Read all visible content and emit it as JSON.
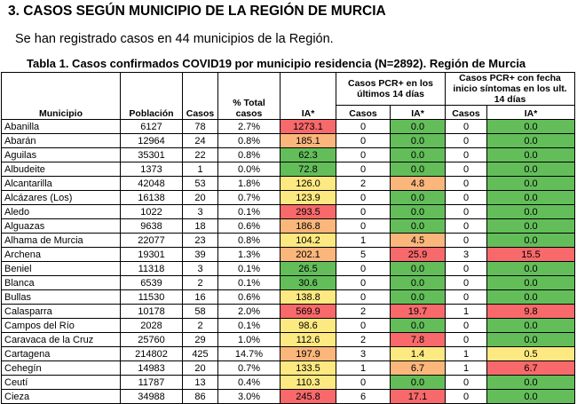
{
  "heading": "3. CASOS SEGÚN MUNICIPIO DE LA REGIÓN DE MURCIA",
  "intro": "Se han registrado casos en 44 municipios de la Región.",
  "caption": "Tabla 1. Casos confirmados COVID19 por municipio residencia (N=2892). Región de Murcia",
  "headers": {
    "municipio": "Municipio",
    "poblacion": "Población",
    "casos": "Casos",
    "pct": "% Total casos",
    "ia": "IA*",
    "grp1": "Casos PCR+ en los últimos 14 días",
    "grp2": "Casos PCR+ con fecha inicio síntomas en los ult. 14 días",
    "sub_casos": "Casos",
    "sub_ia": "IA*"
  },
  "colors": {
    "green": "#63be5a",
    "yellow": "#fde981",
    "orange": "#fbb67b",
    "red": "#f8696b"
  },
  "rows": [
    {
      "municipio": "Abanilla",
      "poblacion": "6127",
      "casos": "78",
      "pct": "2.7%",
      "ia": "1273.1",
      "c14": "0",
      "ia14": "0.0",
      "cs14": "0",
      "ias14": "0.0",
      "col": [
        "red",
        "green",
        "green"
      ]
    },
    {
      "municipio": "Abarán",
      "poblacion": "12964",
      "casos": "24",
      "pct": "0.8%",
      "ia": "185.1",
      "c14": "0",
      "ia14": "0.0",
      "cs14": "0",
      "ias14": "0.0",
      "col": [
        "orange",
        "green",
        "green"
      ]
    },
    {
      "municipio": "Aguilas",
      "poblacion": "35301",
      "casos": "22",
      "pct": "0.8%",
      "ia": "62.3",
      "c14": "0",
      "ia14": "0.0",
      "cs14": "0",
      "ias14": "0.0",
      "col": [
        "green",
        "green",
        "green"
      ]
    },
    {
      "municipio": "Albudeite",
      "poblacion": "1373",
      "casos": "1",
      "pct": "0.0%",
      "ia": "72.8",
      "c14": "0",
      "ia14": "0.0",
      "cs14": "0",
      "ias14": "0.0",
      "col": [
        "green",
        "green",
        "green"
      ]
    },
    {
      "municipio": "Alcantarilla",
      "poblacion": "42048",
      "casos": "53",
      "pct": "1.8%",
      "ia": "126.0",
      "c14": "2",
      "ia14": "4.8",
      "cs14": "0",
      "ias14": "0.0",
      "col": [
        "yellow",
        "orange",
        "green"
      ]
    },
    {
      "municipio": "Alcázares (Los)",
      "poblacion": "16138",
      "casos": "20",
      "pct": "0.7%",
      "ia": "123.9",
      "c14": "0",
      "ia14": "0.0",
      "cs14": "0",
      "ias14": "0.0",
      "col": [
        "yellow",
        "green",
        "green"
      ]
    },
    {
      "municipio": "Aledo",
      "poblacion": "1022",
      "casos": "3",
      "pct": "0.1%",
      "ia": "293.5",
      "c14": "0",
      "ia14": "0.0",
      "cs14": "0",
      "ias14": "0.0",
      "col": [
        "red",
        "green",
        "green"
      ]
    },
    {
      "municipio": "Alguazas",
      "poblacion": "9638",
      "casos": "18",
      "pct": "0.6%",
      "ia": "186.8",
      "c14": "0",
      "ia14": "0.0",
      "cs14": "0",
      "ias14": "0.0",
      "col": [
        "orange",
        "green",
        "green"
      ]
    },
    {
      "municipio": "Alhama de Murcia",
      "poblacion": "22077",
      "casos": "23",
      "pct": "0.8%",
      "ia": "104.2",
      "c14": "1",
      "ia14": "4.5",
      "cs14": "0",
      "ias14": "0.0",
      "col": [
        "yellow",
        "orange",
        "green"
      ]
    },
    {
      "municipio": "Archena",
      "poblacion": "19301",
      "casos": "39",
      "pct": "1.3%",
      "ia": "202.1",
      "c14": "5",
      "ia14": "25.9",
      "cs14": "3",
      "ias14": "15.5",
      "col": [
        "orange",
        "red",
        "red"
      ]
    },
    {
      "municipio": "Beniel",
      "poblacion": "11318",
      "casos": "3",
      "pct": "0.1%",
      "ia": "26.5",
      "c14": "0",
      "ia14": "0.0",
      "cs14": "0",
      "ias14": "0.0",
      "col": [
        "green",
        "green",
        "green"
      ]
    },
    {
      "municipio": "Blanca",
      "poblacion": "6539",
      "casos": "2",
      "pct": "0.1%",
      "ia": "30.6",
      "c14": "0",
      "ia14": "0.0",
      "cs14": "0",
      "ias14": "0.0",
      "col": [
        "green",
        "green",
        "green"
      ]
    },
    {
      "municipio": "Bullas",
      "poblacion": "11530",
      "casos": "16",
      "pct": "0.6%",
      "ia": "138.8",
      "c14": "0",
      "ia14": "0.0",
      "cs14": "0",
      "ias14": "0.0",
      "col": [
        "yellow",
        "green",
        "green"
      ]
    },
    {
      "municipio": "Calasparra",
      "poblacion": "10178",
      "casos": "58",
      "pct": "2.0%",
      "ia": "569.9",
      "c14": "2",
      "ia14": "19.7",
      "cs14": "1",
      "ias14": "9.8",
      "col": [
        "red",
        "red",
        "red"
      ]
    },
    {
      "municipio": "Campos del Río",
      "poblacion": "2028",
      "casos": "2",
      "pct": "0.1%",
      "ia": "98.6",
      "c14": "0",
      "ia14": "0.0",
      "cs14": "0",
      "ias14": "0.0",
      "col": [
        "yellow",
        "green",
        "green"
      ]
    },
    {
      "municipio": "Caravaca de la Cruz",
      "poblacion": "25760",
      "casos": "29",
      "pct": "1.0%",
      "ia": "112.6",
      "c14": "2",
      "ia14": "7.8",
      "cs14": "0",
      "ias14": "0.0",
      "col": [
        "yellow",
        "red",
        "green"
      ]
    },
    {
      "municipio": "Cartagena",
      "poblacion": "214802",
      "casos": "425",
      "pct": "14.7%",
      "ia": "197.9",
      "c14": "3",
      "ia14": "1.4",
      "cs14": "1",
      "ias14": "0.5",
      "col": [
        "orange",
        "yellow",
        "yellow"
      ]
    },
    {
      "municipio": "Cehegín",
      "poblacion": "14983",
      "casos": "20",
      "pct": "0.7%",
      "ia": "133.5",
      "c14": "1",
      "ia14": "6.7",
      "cs14": "1",
      "ias14": "6.7",
      "col": [
        "yellow",
        "orange",
        "red"
      ]
    },
    {
      "municipio": "Ceutí",
      "poblacion": "11787",
      "casos": "13",
      "pct": "0.4%",
      "ia": "110.3",
      "c14": "0",
      "ia14": "0.0",
      "cs14": "0",
      "ias14": "0.0",
      "col": [
        "yellow",
        "green",
        "green"
      ]
    },
    {
      "municipio": "Cieza",
      "poblacion": "34988",
      "casos": "86",
      "pct": "3.0%",
      "ia": "245.8",
      "c14": "6",
      "ia14": "17.1",
      "cs14": "0",
      "ias14": "0.0",
      "col": [
        "red",
        "red",
        "green"
      ]
    }
  ]
}
